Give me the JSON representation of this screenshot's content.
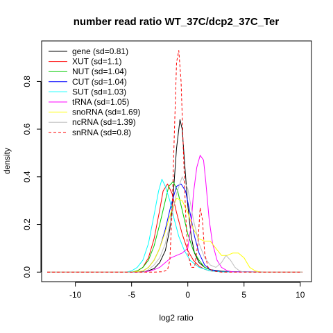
{
  "chart_data": {
    "type": "line",
    "title": "number read ratio WT_37C/dcp2_37C_Ter",
    "xlabel": "log2 ratio",
    "ylabel": "density",
    "xlim": [
      -13,
      11
    ],
    "ylim": [
      -0.04,
      0.97
    ],
    "x_ticks": [
      -10,
      -5,
      0,
      5,
      10
    ],
    "y_ticks": [
      0.0,
      0.2,
      0.4,
      0.6,
      0.8
    ],
    "grid": false,
    "legend_position": "top-left",
    "series": [
      {
        "name": "gene (sd=0.81)",
        "color": "#000000",
        "dash": false,
        "points": [
          [
            -12.5,
            0
          ],
          [
            -4.5,
            0
          ],
          [
            -4,
            0.002
          ],
          [
            -3.5,
            0.006
          ],
          [
            -3,
            0.015
          ],
          [
            -2.5,
            0.04
          ],
          [
            -2,
            0.09
          ],
          [
            -1.6,
            0.18
          ],
          [
            -1.3,
            0.32
          ],
          [
            -1,
            0.52
          ],
          [
            -0.7,
            0.64
          ],
          [
            -0.5,
            0.6
          ],
          [
            -0.3,
            0.47
          ],
          [
            0,
            0.28
          ],
          [
            0.3,
            0.15
          ],
          [
            0.6,
            0.08
          ],
          [
            1,
            0.04
          ],
          [
            1.5,
            0.02
          ],
          [
            2,
            0.01
          ],
          [
            3,
            0.004
          ],
          [
            4,
            0.001
          ],
          [
            10.2,
            0
          ]
        ]
      },
      {
        "name": "XUT (sd=1.1)",
        "color": "#ff0000",
        "dash": false,
        "points": [
          [
            -12.5,
            0
          ],
          [
            -5,
            0
          ],
          [
            -4.5,
            0.005
          ],
          [
            -4,
            0.02
          ],
          [
            -3.5,
            0.06
          ],
          [
            -3,
            0.14
          ],
          [
            -2.5,
            0.26
          ],
          [
            -2.2,
            0.34
          ],
          [
            -1.8,
            0.37
          ],
          [
            -1.4,
            0.33
          ],
          [
            -1,
            0.25
          ],
          [
            -0.5,
            0.16
          ],
          [
            0,
            0.09
          ],
          [
            0.5,
            0.05
          ],
          [
            1,
            0.025
          ],
          [
            1.5,
            0.012
          ],
          [
            2,
            0.005
          ],
          [
            3,
            0.001
          ],
          [
            10.2,
            0
          ]
        ]
      },
      {
        "name": "NUT (sd=1.04)",
        "color": "#00cc00",
        "dash": false,
        "points": [
          [
            -12.5,
            0
          ],
          [
            -5,
            0
          ],
          [
            -4.5,
            0.005
          ],
          [
            -4,
            0.02
          ],
          [
            -3.5,
            0.05
          ],
          [
            -3,
            0.11
          ],
          [
            -2.5,
            0.2
          ],
          [
            -2,
            0.3
          ],
          [
            -1.7,
            0.36
          ],
          [
            -1.3,
            0.38
          ],
          [
            -0.9,
            0.34
          ],
          [
            -0.5,
            0.26
          ],
          [
            0,
            0.16
          ],
          [
            0.5,
            0.09
          ],
          [
            1,
            0.05
          ],
          [
            1.5,
            0.02
          ],
          [
            2,
            0.01
          ],
          [
            3,
            0.002
          ],
          [
            10.2,
            0
          ]
        ]
      },
      {
        "name": "CUT (sd=1.04)",
        "color": "#0000ff",
        "dash": false,
        "points": [
          [
            -12.5,
            0
          ],
          [
            -4.5,
            0
          ],
          [
            -4,
            0.005
          ],
          [
            -3.5,
            0.02
          ],
          [
            -3,
            0.05
          ],
          [
            -2.5,
            0.1
          ],
          [
            -2,
            0.18
          ],
          [
            -1.5,
            0.28
          ],
          [
            -1,
            0.36
          ],
          [
            -0.6,
            0.37
          ],
          [
            -0.2,
            0.34
          ],
          [
            0.2,
            0.25
          ],
          [
            0.6,
            0.15
          ],
          [
            1,
            0.08
          ],
          [
            1.5,
            0.03
          ],
          [
            2,
            0.01
          ],
          [
            3,
            0.002
          ],
          [
            10.2,
            0
          ]
        ]
      },
      {
        "name": "SUT (sd=1.03)",
        "color": "#00ffff",
        "dash": false,
        "points": [
          [
            -12.5,
            0
          ],
          [
            -5.5,
            0
          ],
          [
            -5,
            0.005
          ],
          [
            -4.5,
            0.02
          ],
          [
            -4,
            0.05
          ],
          [
            -3.5,
            0.12
          ],
          [
            -3,
            0.24
          ],
          [
            -2.6,
            0.34
          ],
          [
            -2.3,
            0.39
          ],
          [
            -2,
            0.36
          ],
          [
            -1.6,
            0.3
          ],
          [
            -1.2,
            0.22
          ],
          [
            -0.8,
            0.15
          ],
          [
            -0.3,
            0.09
          ],
          [
            0.2,
            0.05
          ],
          [
            1,
            0.02
          ],
          [
            2,
            0.005
          ],
          [
            3,
            0.001
          ],
          [
            10.2,
            0
          ]
        ]
      },
      {
        "name": "tRNA (sd=1.05)",
        "color": "#ff00ff",
        "dash": false,
        "points": [
          [
            -12.5,
            0
          ],
          [
            -4,
            0
          ],
          [
            -3.5,
            0.004
          ],
          [
            -3,
            0.01
          ],
          [
            -2.5,
            0.02
          ],
          [
            -2,
            0.04
          ],
          [
            -1.5,
            0.06
          ],
          [
            -1,
            0.07
          ],
          [
            -0.5,
            0.08
          ],
          [
            0,
            0.1
          ],
          [
            0.3,
            0.2
          ],
          [
            0.5,
            0.33
          ],
          [
            0.8,
            0.44
          ],
          [
            1.1,
            0.49
          ],
          [
            1.4,
            0.47
          ],
          [
            1.6,
            0.38
          ],
          [
            1.9,
            0.22
          ],
          [
            2.2,
            0.12
          ],
          [
            2.6,
            0.05
          ],
          [
            3,
            0.02
          ],
          [
            3.5,
            0.006
          ],
          [
            4,
            0.001
          ],
          [
            10.2,
            0
          ]
        ]
      },
      {
        "name": "snoRNA (sd=1.69)",
        "color": "#ffff00",
        "dash": false,
        "points": [
          [
            -12.5,
            0
          ],
          [
            -5,
            0
          ],
          [
            -4,
            0.005
          ],
          [
            -3.5,
            0.02
          ],
          [
            -3,
            0.05
          ],
          [
            -2.5,
            0.1
          ],
          [
            -2,
            0.17
          ],
          [
            -1.5,
            0.25
          ],
          [
            -1,
            0.31
          ],
          [
            -0.5,
            0.3
          ],
          [
            0,
            0.25
          ],
          [
            0.5,
            0.18
          ],
          [
            1,
            0.14
          ],
          [
            1.5,
            0.13
          ],
          [
            2,
            0.13
          ],
          [
            2.5,
            0.1
          ],
          [
            3,
            0.07
          ],
          [
            3.5,
            0.07
          ],
          [
            4,
            0.08
          ],
          [
            4.5,
            0.08
          ],
          [
            5,
            0.06
          ],
          [
            5.5,
            0.02
          ],
          [
            6,
            0.005
          ],
          [
            6.5,
            0
          ],
          [
            10.2,
            0
          ]
        ]
      },
      {
        "name": "ncRNA (sd=1.39)",
        "color": "#bebebe",
        "dash": false,
        "points": [
          [
            -12.5,
            0
          ],
          [
            -4,
            0
          ],
          [
            -3.5,
            0.01
          ],
          [
            -3,
            0.03
          ],
          [
            -2.5,
            0.06
          ],
          [
            -2,
            0.12
          ],
          [
            -1.5,
            0.22
          ],
          [
            -1,
            0.33
          ],
          [
            -0.5,
            0.4
          ],
          [
            0,
            0.35
          ],
          [
            0.5,
            0.22
          ],
          [
            1,
            0.12
          ],
          [
            1.5,
            0.06
          ],
          [
            2,
            0.03
          ],
          [
            2.5,
            0.02
          ],
          [
            3,
            0.04
          ],
          [
            3.4,
            0.07
          ],
          [
            3.8,
            0.05
          ],
          [
            4.2,
            0.02
          ],
          [
            4.6,
            0.005
          ],
          [
            5,
            0
          ],
          [
            10.2,
            0
          ]
        ]
      },
      {
        "name": "snRNA (sd=0.8)",
        "color": "#ff0000",
        "dash": true,
        "points": [
          [
            -12.5,
            0
          ],
          [
            -3,
            0
          ],
          [
            -2.2,
            0.002
          ],
          [
            -1.8,
            0.01
          ],
          [
            -1.6,
            0.05
          ],
          [
            -1.4,
            0.25
          ],
          [
            -1.2,
            0.58
          ],
          [
            -1,
            0.88
          ],
          [
            -0.8,
            0.93
          ],
          [
            -0.6,
            0.8
          ],
          [
            -0.4,
            0.52
          ],
          [
            -0.2,
            0.25
          ],
          [
            0,
            0.08
          ],
          [
            0.3,
            0.02
          ],
          [
            0.6,
            0.02
          ],
          [
            0.9,
            0.12
          ],
          [
            1.1,
            0.27
          ],
          [
            1.3,
            0.22
          ],
          [
            1.5,
            0.08
          ],
          [
            1.8,
            0.02
          ],
          [
            2.2,
            0.005
          ],
          [
            3,
            0
          ],
          [
            10.2,
            0
          ]
        ]
      }
    ]
  }
}
